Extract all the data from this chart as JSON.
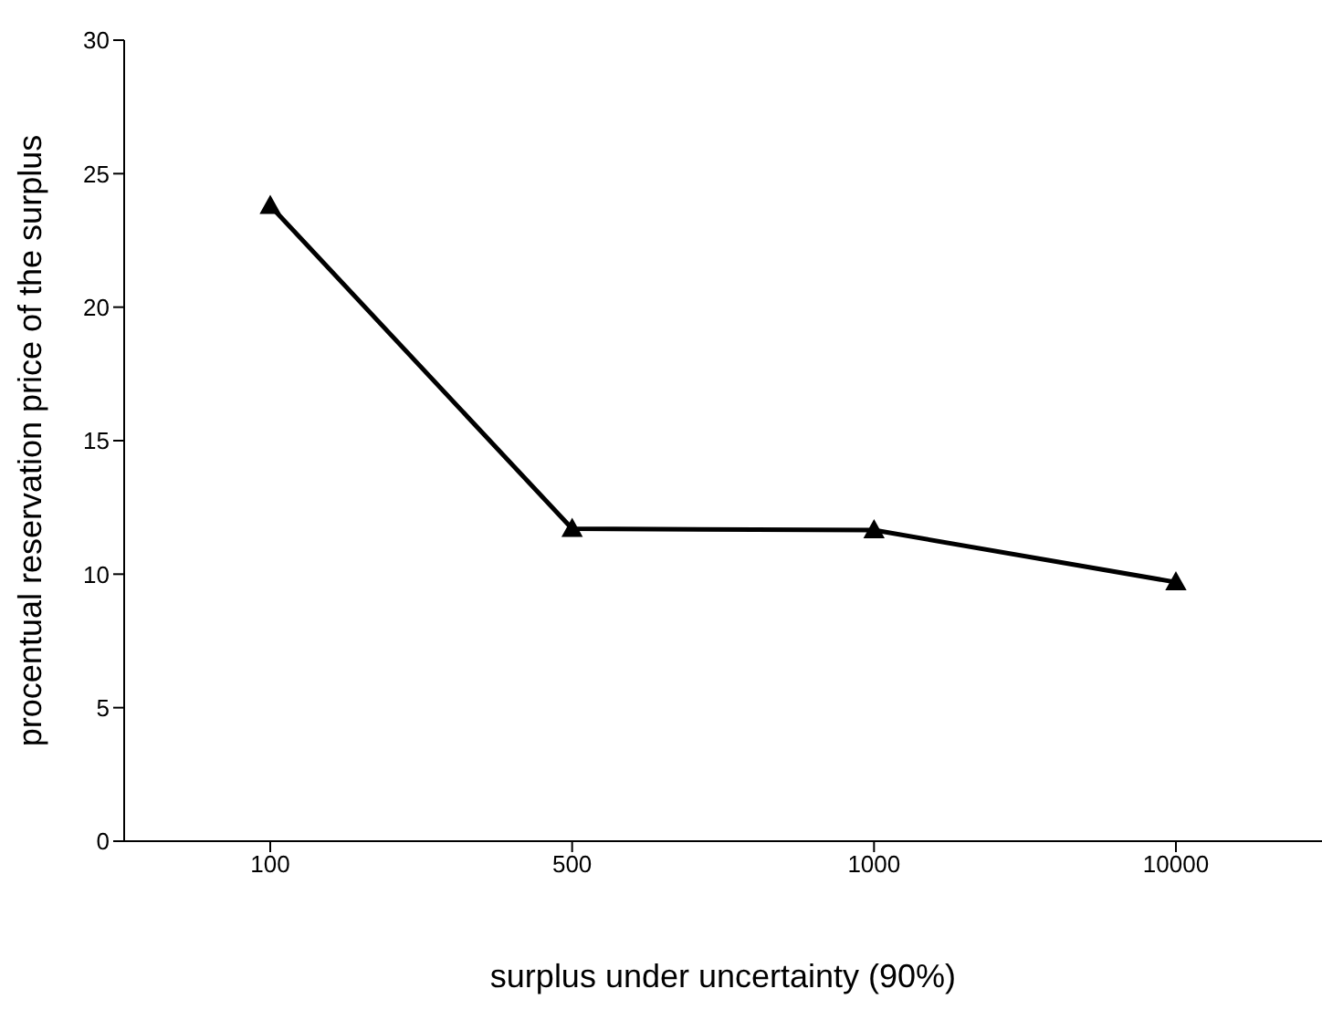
{
  "chart_data": {
    "type": "line",
    "xlabel": "surplus under uncertainty (90%)",
    "ylabel": "procentual reservation price of the surplus",
    "categories": [
      "100",
      "500",
      "1000",
      "10000"
    ],
    "series": [
      {
        "color": "#000000",
        "values": [
          23.8,
          11.7,
          11.65,
          9.7
        ]
      }
    ],
    "ylim": [
      0,
      30
    ],
    "yticks": [
      0,
      5,
      10,
      15,
      20,
      25,
      30
    ],
    "grid": false,
    "legend": false,
    "marker": "triangle",
    "line_style": "solid"
  }
}
